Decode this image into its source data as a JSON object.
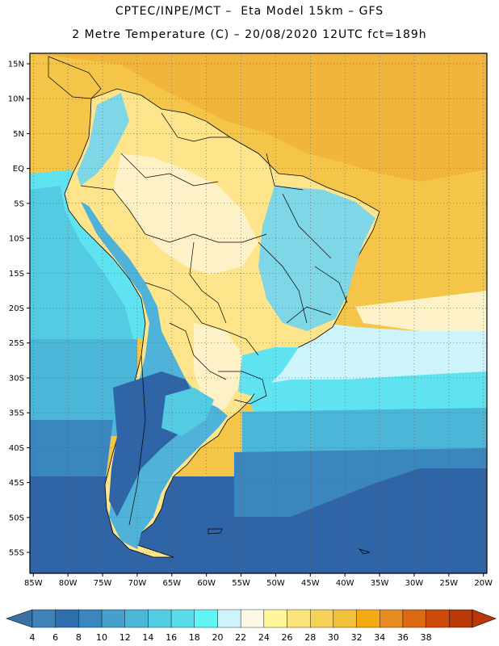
{
  "header": {
    "line1": "CPTEC/INPE/MCT –  Eta Model 15km – GFS",
    "line2": "2 Metre Temperature (C) – 20/08/2020 12UTC fct=189h"
  },
  "map": {
    "lat_labels": [
      "15N",
      "10N",
      "5N",
      "EQ",
      "5S",
      "10S",
      "15S",
      "20S",
      "25S",
      "30S",
      "35S",
      "40S",
      "45S",
      "50S",
      "55S"
    ],
    "lon_labels": [
      "85W",
      "80W",
      "75W",
      "70W",
      "65W",
      "60W",
      "55W",
      "50W",
      "45W",
      "40W",
      "35W",
      "30W",
      "25W",
      "20W"
    ],
    "lat_values": [
      15,
      10,
      5,
      0,
      -5,
      -10,
      -15,
      -20,
      -25,
      -30,
      -35,
      -40,
      -45,
      -50,
      -55
    ],
    "lon_values": [
      -85,
      -80,
      -75,
      -70,
      -65,
      -60,
      -55,
      -50,
      -45,
      -40,
      -35,
      -30,
      -25,
      -20
    ],
    "extent": {
      "lon_min": -85.5,
      "lon_max": -19.5,
      "lat_min": -58,
      "lat_max": 16.5
    },
    "gridlines": "dotted"
  },
  "colorbar": {
    "labels": [
      "4",
      "6",
      "8",
      "10",
      "12",
      "14",
      "16",
      "18",
      "20",
      "22",
      "24",
      "26",
      "28",
      "30",
      "32",
      "34",
      "36",
      "38"
    ],
    "colors": [
      "#3f83b8",
      "#2f6fad",
      "#3a86bf",
      "#45a0cc",
      "#4cb6d8",
      "#52cbe3",
      "#5bdceb",
      "#62f3f5",
      "#cdf4fb",
      "#fdf9e6",
      "#fff79a",
      "#fbe47a",
      "#f6d25a",
      "#f2c23c",
      "#f4ab12",
      "#e88b20",
      "#dc6a12",
      "#cc4a0a",
      "#b93808"
    ],
    "left_arrow": "#3a70a8",
    "right_arrow": "#b93808"
  },
  "palette": {
    "ocean_warm": "#f5c54a",
    "ocean_hot": "#f0b53a",
    "land_dry": "#fdf1c8",
    "land_yellow": "#fee58c",
    "cool": "#7fd6e6",
    "cyan": "#5fe3f0",
    "mid_blue": "#4fb2d8",
    "deep_blue": "#2f64a6",
    "coast": "#000000"
  }
}
